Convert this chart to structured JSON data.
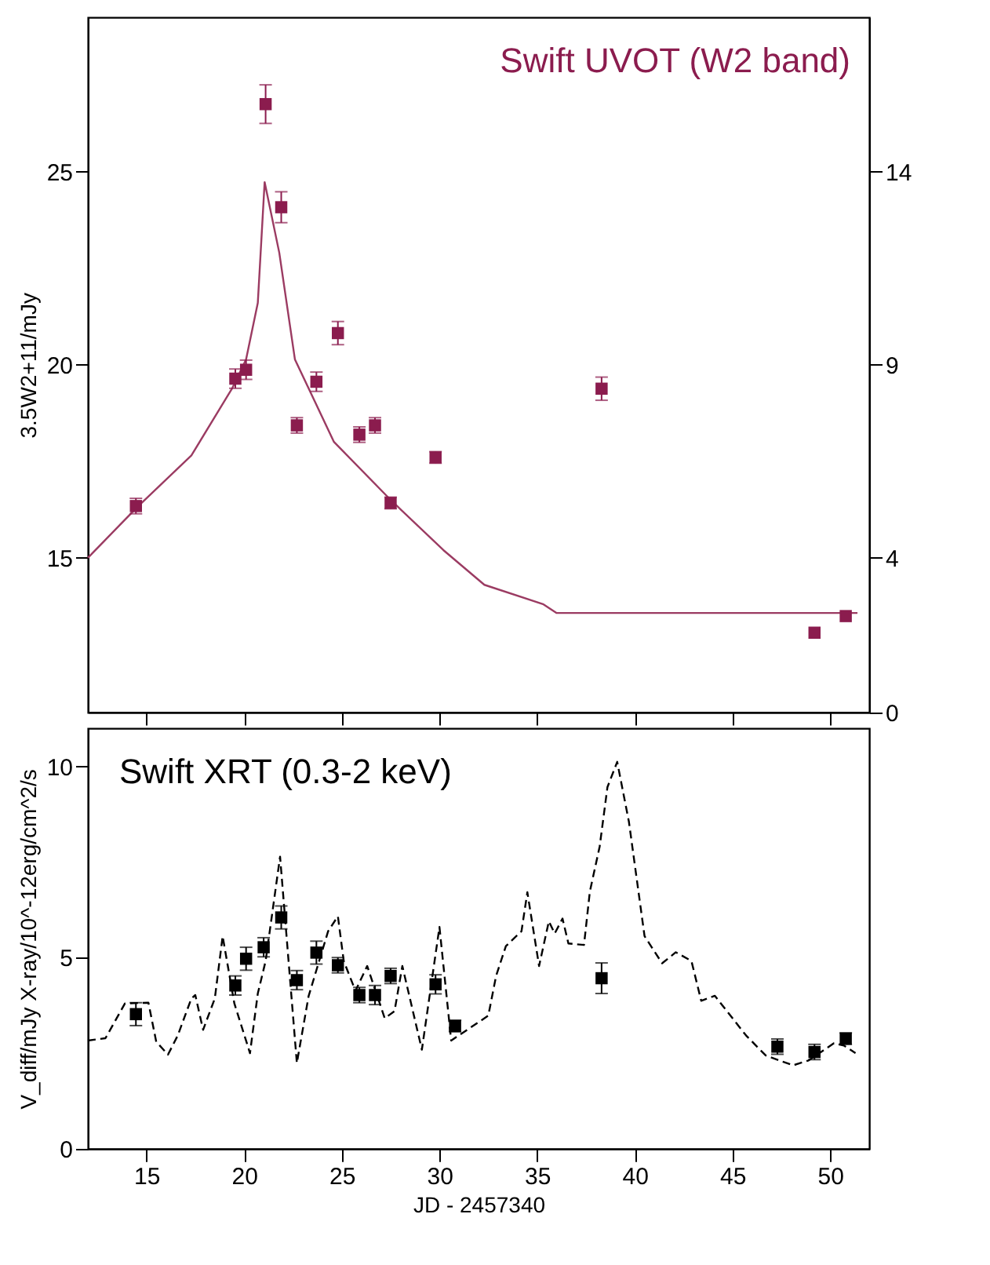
{
  "chart_data": [
    {
      "type": "scatter",
      "ylabel": "3.5W2+11/mJy",
      "annotations": [
        "Swift UVOT (W2 band)"
      ],
      "xlim": [
        12,
        52
      ],
      "xticks": [
        15,
        20,
        25,
        30,
        35,
        40,
        45,
        50
      ],
      "ylim": [
        11,
        29
      ],
      "yticks": [
        15,
        20,
        25
      ],
      "y2lim": [
        0,
        18
      ],
      "y2ticks": [
        0,
        4,
        9,
        14
      ],
      "tick_labels": "y",
      "grid": false,
      "series": [
        {
          "type": "line",
          "marker": "none",
          "color": "#9b3b62",
          "x": [
            12,
            14.5,
            17.3,
            19.4,
            20.1,
            20.7,
            21.05,
            21.8,
            22.6,
            24.6,
            27.5,
            30.2,
            32.3,
            35.3,
            36.0,
            51.4
          ],
          "values": [
            15.0,
            16.3,
            17.65,
            19.4,
            20.14,
            21.6,
            24.73,
            22.9,
            20.14,
            18.0,
            16.5,
            15.2,
            14.3,
            13.8,
            13.57,
            13.57
          ]
        },
        {
          "marker": "square",
          "color": "#8b1c4e",
          "x": [
            14.46,
            19.55,
            20.1,
            21.1,
            21.9,
            22.7,
            23.7,
            24.8,
            25.9,
            26.7,
            27.5,
            29.8,
            38.3,
            49.2,
            50.8
          ],
          "values": [
            16.34,
            19.64,
            19.87,
            26.75,
            24.08,
            18.43,
            19.56,
            20.82,
            18.19,
            18.43,
            16.42,
            17.6,
            19.38,
            13.06,
            13.49
          ],
          "errors": [
            0.2,
            0.25,
            0.25,
            0.5,
            0.4,
            0.2,
            0.25,
            0.3,
            0.2,
            0.2,
            0.15,
            0.15,
            0.3,
            null,
            null
          ]
        }
      ]
    },
    {
      "type": "scatter",
      "xlabel": "JD - 2457340",
      "ylabel": "V_diff/mJy  X-ray/10^-12erg/cm^2/s",
      "annotations": [
        "Swift XRT (0.3-2 keV)"
      ],
      "xlim": [
        12,
        52
      ],
      "xticks": [
        15,
        20,
        25,
        30,
        35,
        40,
        45,
        50
      ],
      "ylim": [
        0,
        11
      ],
      "yticks": [
        0,
        5,
        10
      ],
      "grid": false,
      "series": [
        {
          "type": "line",
          "marker": "none",
          "color": "#000000",
          "line_style": "dashed",
          "x": [
            12,
            12.9,
            13.9,
            15.1,
            15.5,
            16.1,
            16.6,
            17.3,
            17.5,
            17.9,
            18.5,
            18.9,
            19.5,
            20.3,
            20.7,
            21.1,
            21.84,
            22.7,
            23.3,
            24.3,
            24.8,
            25.1,
            25.7,
            26.3,
            27.2,
            27.7,
            28.1,
            29.1,
            30.0,
            30.6,
            32.5,
            32.9,
            33.4,
            34.2,
            34.5,
            35.1,
            35.6,
            35.9,
            36.3,
            36.6,
            37.4,
            37.7,
            38.2,
            38.6,
            39.1,
            39.7,
            40.5,
            41.4,
            42.1,
            42.9,
            43.4,
            44.1,
            45.7,
            46.7,
            48.1,
            48.9,
            50.2,
            50.7,
            51.3
          ],
          "values": [
            2.83,
            2.89,
            3.8,
            3.82,
            2.8,
            2.46,
            2.96,
            3.93,
            4.02,
            3.11,
            3.93,
            5.56,
            3.8,
            2.5,
            4.06,
            4.91,
            7.64,
            2.24,
            3.99,
            5.69,
            6.08,
            4.91,
            4.13,
            4.78,
            3.41,
            3.6,
            4.78,
            2.59,
            5.8,
            2.83,
            3.48,
            4.52,
            5.3,
            5.69,
            6.71,
            4.78,
            5.95,
            5.63,
            6.02,
            5.37,
            5.33,
            6.73,
            7.9,
            9.46,
            10.12,
            8.55,
            5.56,
            4.85,
            5.14,
            4.91,
            3.87,
            4.0,
            2.96,
            2.44,
            2.18,
            2.31,
            2.76,
            2.7,
            2.5
          ]
        },
        {
          "marker": "square",
          "color": "#000000",
          "x": [
            14.46,
            19.55,
            20.1,
            21.0,
            21.9,
            22.7,
            23.7,
            24.8,
            25.9,
            26.7,
            27.5,
            29.8,
            30.8,
            38.3,
            47.3,
            49.2,
            50.8
          ],
          "values": [
            3.52,
            4.27,
            4.97,
            5.27,
            6.05,
            4.41,
            5.13,
            4.8,
            4.02,
            4.02,
            4.52,
            4.3,
            3.21,
            4.46,
            2.67,
            2.53,
            2.88
          ],
          "errors": [
            0.3,
            0.25,
            0.3,
            0.25,
            0.3,
            0.25,
            0.3,
            0.2,
            0.2,
            0.25,
            0.2,
            0.25,
            0.15,
            0.4,
            0.2,
            0.2,
            0.15
          ]
        }
      ]
    }
  ]
}
